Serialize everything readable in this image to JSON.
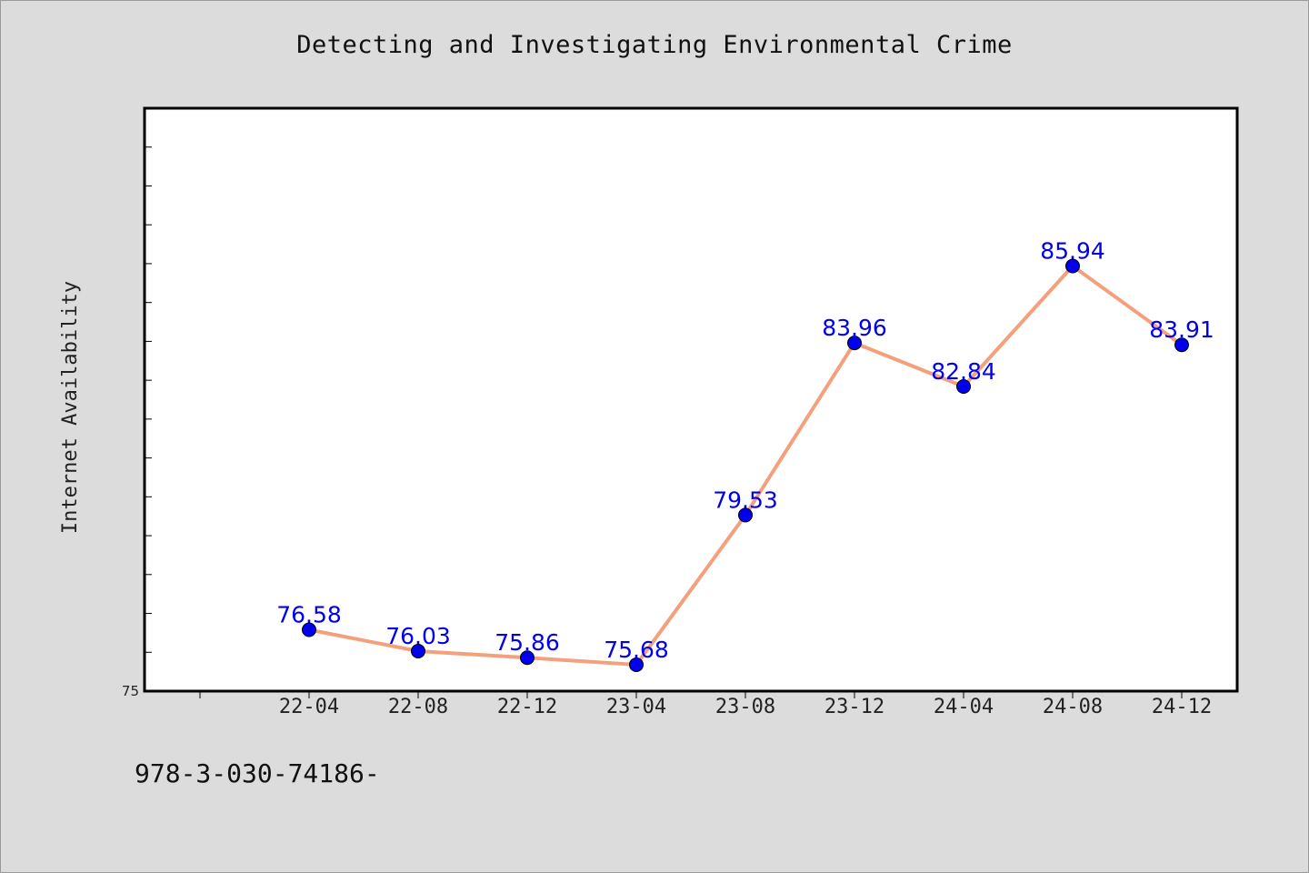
{
  "chart_data": {
    "type": "line",
    "title": "Detecting and Investigating Environmental Crime",
    "xlabel": "",
    "ylabel": "Internet Availability",
    "categories": [
      "22-04",
      "22-08",
      "22-12",
      "23-04",
      "23-08",
      "23-12",
      "24-04",
      "24-08",
      "24-12"
    ],
    "series": [
      {
        "values": [
          76.58,
          76.03,
          75.86,
          75.68,
          79.53,
          83.96,
          82.84,
          85.94,
          83.91
        ]
      }
    ],
    "ylim": [
      75,
      90
    ],
    "y_tick_labels": [
      "75"
    ],
    "grid": false,
    "data_labels": true,
    "colors": {
      "line": "#f4a07c",
      "marker": "#0000ee",
      "label": "#0000ee",
      "background": "#dcdcdc",
      "plot_background": "#ffffff"
    }
  },
  "footer": {
    "note": "978-3-030-74186-"
  }
}
